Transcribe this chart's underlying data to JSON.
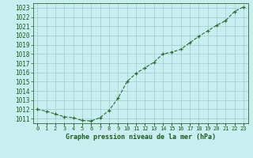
{
  "x": [
    0,
    1,
    2,
    3,
    4,
    5,
    6,
    7,
    8,
    9,
    10,
    11,
    12,
    13,
    14,
    15,
    16,
    17,
    18,
    19,
    20,
    21,
    22,
    23
  ],
  "y": [
    1012.0,
    1011.8,
    1011.5,
    1011.2,
    1011.1,
    1010.8,
    1010.75,
    1011.1,
    1011.9,
    1013.2,
    1015.0,
    1015.9,
    1016.5,
    1017.1,
    1018.0,
    1018.2,
    1018.5,
    1019.2,
    1019.9,
    1020.5,
    1021.1,
    1021.6,
    1022.6,
    1023.1
  ],
  "line_color": "#2d6a2d",
  "marker": "+",
  "bg_color": "#c8eef0",
  "grid_color": "#a0c8d0",
  "xlabel": "Graphe pression niveau de la mer (hPa)",
  "xlabel_color": "#1a5c1a",
  "tick_color": "#1a5c1a",
  "ylim": [
    1010.5,
    1023.5
  ],
  "yticks": [
    1011,
    1012,
    1013,
    1014,
    1015,
    1016,
    1017,
    1018,
    1019,
    1020,
    1021,
    1022,
    1023
  ],
  "xlim": [
    -0.5,
    23.5
  ],
  "spine_color": "#2d6a2d"
}
